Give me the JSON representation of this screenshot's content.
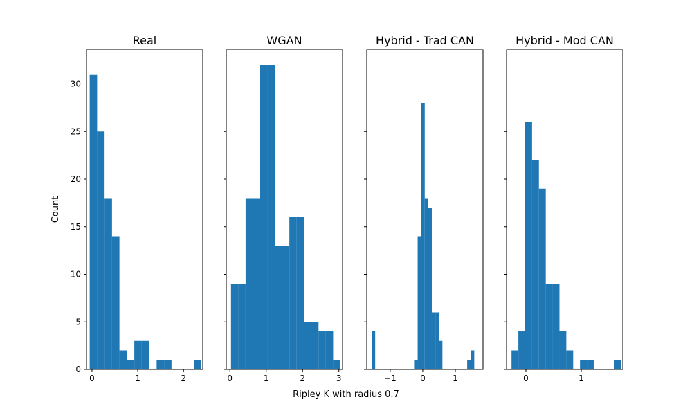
{
  "figure": {
    "xlabel": "Ripley K with radius 0.7",
    "ylabel": "Count",
    "bar_color": "#1f77b4"
  },
  "chart_data": [
    {
      "type": "bar",
      "title": "Real",
      "ylim": [
        0,
        33.6
      ],
      "xlim": [
        -0.12,
        2.42
      ],
      "xticks": [
        0,
        1,
        2
      ],
      "xtick_labels": [
        "0",
        "1",
        "2"
      ],
      "yticks": [
        0,
        5,
        10,
        15,
        20,
        25,
        30
      ],
      "ytick_labels": [
        "0",
        "5",
        "10",
        "15",
        "20",
        "25",
        "30"
      ],
      "bin_edges": [
        -0.05,
        0.1125,
        0.275,
        0.4375,
        0.6,
        0.7625,
        0.925,
        1.0875,
        1.25,
        1.4125,
        1.575,
        1.7375,
        1.9,
        2.0625,
        2.225,
        2.3875
      ],
      "values": [
        31,
        25,
        18,
        14,
        2,
        1,
        3,
        3,
        0,
        1,
        1,
        0,
        0,
        0,
        1
      ]
    },
    {
      "type": "bar",
      "title": "WGAN",
      "ylim": [
        0,
        33.6
      ],
      "xlim": [
        -0.1,
        3.1
      ],
      "xticks": [
        0,
        1,
        2,
        3
      ],
      "xtick_labels": [
        "0",
        "1",
        "2",
        "3"
      ],
      "yticks": [
        0,
        5,
        10,
        15,
        20,
        25,
        30
      ],
      "bin_edges": [
        0.03,
        0.2308,
        0.4316,
        0.6324,
        0.8332,
        1.034,
        1.2348,
        1.4356,
        1.6364,
        1.8372,
        2.038,
        2.2388,
        2.4396,
        2.6404,
        2.8412,
        3.042
      ],
      "values": [
        9,
        9,
        18,
        18,
        32,
        32,
        13,
        13,
        16,
        16,
        5,
        5,
        4,
        4,
        1
      ]
    },
    {
      "type": "bar",
      "title": "Hybrid - Trad CAN",
      "ylim": [
        0,
        33.6
      ],
      "xlim": [
        -1.72,
        1.85
      ],
      "xticks": [
        -1,
        0,
        1
      ],
      "xtick_labels": [
        "−1",
        "0",
        "1"
      ],
      "yticks": [
        0,
        5,
        10,
        15,
        20,
        25,
        30
      ],
      "bin_edges": [
        -1.57,
        -1.4613,
        -1.3527,
        -1.244,
        -1.1353,
        -1.0267,
        -0.918,
        -0.8093,
        -0.7007,
        -0.592,
        -0.4833,
        -0.3747,
        -0.266,
        -0.1573,
        -0.0487,
        0.06,
        0.1687,
        0.2773,
        0.386,
        0.4947,
        0.6033,
        0.712,
        0.8207,
        0.9293,
        1.038,
        1.1467,
        1.2553,
        1.364,
        1.4727,
        1.5813,
        1.69
      ],
      "values": [
        4,
        0,
        0,
        0,
        0,
        0,
        0,
        0,
        0,
        0,
        0,
        0,
        1,
        14,
        28,
        18,
        17,
        6,
        6,
        3,
        0,
        0,
        0,
        0,
        0,
        0,
        0,
        1,
        2,
        0
      ]
    },
    {
      "type": "bar",
      "title": "Hybrid - Mod CAN",
      "ylim": [
        0,
        33.6
      ],
      "xlim": [
        -0.35,
        1.75
      ],
      "xticks": [
        0,
        1
      ],
      "xtick_labels": [
        "0",
        "1"
      ],
      "yticks": [
        0,
        5,
        10,
        15,
        20,
        25,
        30
      ],
      "bin_edges": [
        -0.26,
        -0.1363,
        -0.0126,
        0.1111,
        0.2348,
        0.3585,
        0.4822,
        0.6059,
        0.7296,
        0.8533,
        0.977,
        1.1007,
        1.2244,
        1.3481,
        1.4718,
        1.5955,
        1.7192
      ],
      "values": [
        2,
        4,
        26,
        22,
        19,
        9,
        9,
        4,
        2,
        0,
        1,
        1,
        0,
        0,
        0,
        1
      ]
    }
  ]
}
